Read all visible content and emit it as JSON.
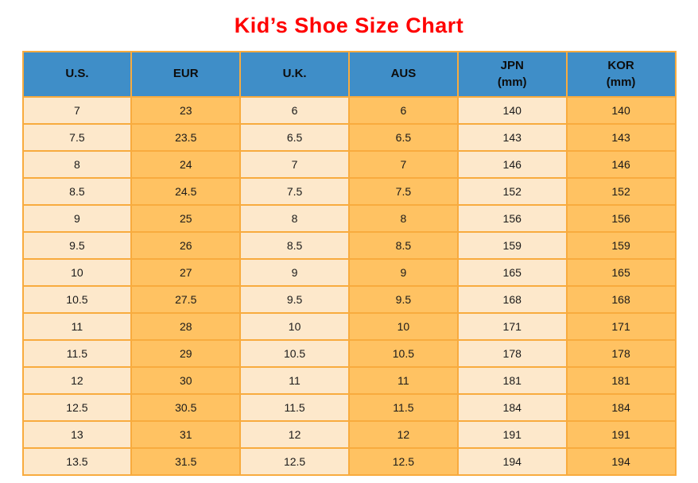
{
  "title": "Kid’s Shoe Size Chart",
  "colors": {
    "title_red": "#ff0000",
    "header_blue": "#3f8ec8",
    "cell_light_peach": "#fde8cb",
    "cell_orange": "#ffc262",
    "grid_orange": "#f8ab3e",
    "cell_text": "#1a1a1a"
  },
  "chart_data": {
    "type": "table",
    "title": "Kid’s Shoe Size Chart",
    "columns": [
      {
        "label": "U.S.",
        "sub": ""
      },
      {
        "label": "EUR",
        "sub": ""
      },
      {
        "label": "U.K.",
        "sub": ""
      },
      {
        "label": "AUS",
        "sub": ""
      },
      {
        "label": "JPN",
        "sub": "(mm)"
      },
      {
        "label": "KOR",
        "sub": "(mm)"
      }
    ],
    "rows": [
      [
        "7",
        "23",
        "6",
        "6",
        "140",
        "140"
      ],
      [
        "7.5",
        "23.5",
        "6.5",
        "6.5",
        "143",
        "143"
      ],
      [
        "8",
        "24",
        "7",
        "7",
        "146",
        "146"
      ],
      [
        "8.5",
        "24.5",
        "7.5",
        "7.5",
        "152",
        "152"
      ],
      [
        "9",
        "25",
        "8",
        "8",
        "156",
        "156"
      ],
      [
        "9.5",
        "26",
        "8.5",
        "8.5",
        "159",
        "159"
      ],
      [
        "10",
        "27",
        "9",
        "9",
        "165",
        "165"
      ],
      [
        "10.5",
        "27.5",
        "9.5",
        "9.5",
        "168",
        "168"
      ],
      [
        "11",
        "28",
        "10",
        "10",
        "171",
        "171"
      ],
      [
        "11.5",
        "29",
        "10.5",
        "10.5",
        "178",
        "178"
      ],
      [
        "12",
        "30",
        "11",
        "11",
        "181",
        "181"
      ],
      [
        "12.5",
        "30.5",
        "11.5",
        "11.5",
        "184",
        "184"
      ],
      [
        "13",
        "31",
        "12",
        "12",
        "191",
        "191"
      ],
      [
        "13.5",
        "31.5",
        "12.5",
        "12.5",
        "194",
        "194"
      ]
    ]
  }
}
